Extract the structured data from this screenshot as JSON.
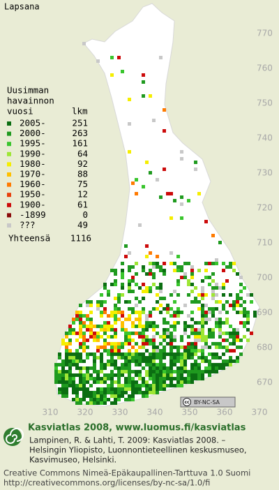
{
  "title": "Lapsana",
  "axes": {
    "yticks": [
      670,
      680,
      690,
      700,
      710,
      720,
      730,
      740,
      750,
      760,
      770
    ],
    "xticks": [
      310,
      320,
      330,
      340,
      350,
      360,
      370
    ]
  },
  "legend": {
    "heading": [
      "Uusimman",
      "havainnon",
      "vuosi"
    ],
    "count_heading": "lkm",
    "rows": [
      {
        "label": "2005-",
        "count": 251,
        "color": "#0b6e12"
      },
      {
        "label": "2000-",
        "count": 263,
        "color": "#1f9a1f"
      },
      {
        "label": "1995-",
        "count": 161,
        "color": "#39c52d"
      },
      {
        "label": "1990-",
        "count": 64,
        "color": "#9ee634"
      },
      {
        "label": "1980-",
        "count": 92,
        "color": "#f5ee00"
      },
      {
        "label": "1970-",
        "count": 88,
        "color": "#ffc000"
      },
      {
        "label": "1960-",
        "count": 75,
        "color": "#ff7a00"
      },
      {
        "label": "1950-",
        "count": 12,
        "color": "#e8400c"
      },
      {
        "label": "1900-",
        "count": 61,
        "color": "#cc0a0a"
      },
      {
        "label": "-1899",
        "count": 0,
        "color": "#8a0a0a"
      },
      {
        "label": "???",
        "count": 49,
        "color": "#c8c8c8"
      }
    ],
    "total_label": "Yhteensä",
    "total": 1116
  },
  "badge": {
    "cc": "cc",
    "text": "BY-NC-SA"
  },
  "footer": {
    "headline": "Kasviatlas 2008, www.luomus.fi/kasviatlas",
    "citation": [
      "Lampinen, R. & Lahti, T. 2009: Kasviatlas 2008. –",
      "Helsingin Yliopisto, Luonnontieteellinen keskusmuseo,",
      "Kasvimuseo, Helsinki."
    ],
    "license": [
      "Creative Commons Nimeä-Epäkaupallinen-Tarttuva 1.0 Suomi",
      "http://creativecommons.org/licenses/by-nc-sa/1.0/fi"
    ]
  }
}
